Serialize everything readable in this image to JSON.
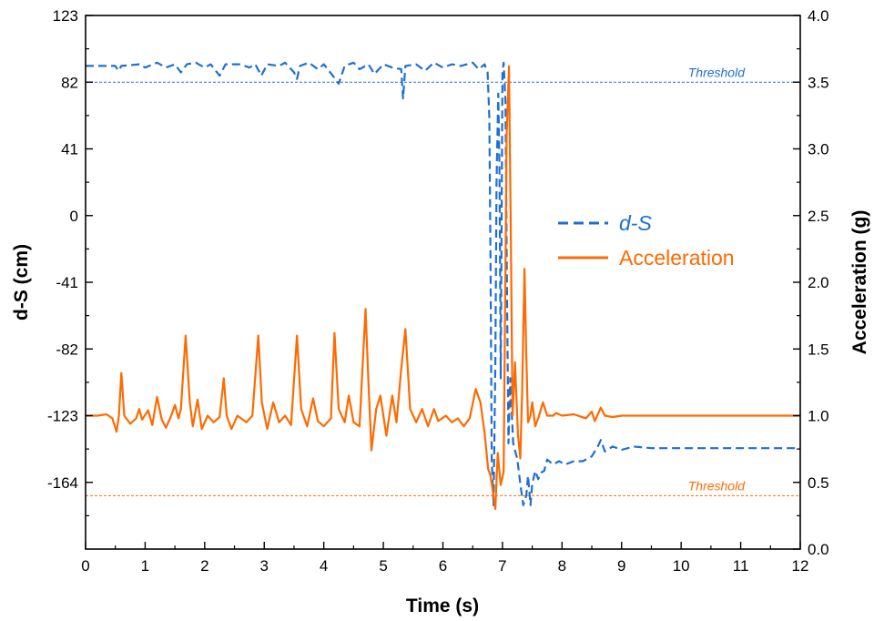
{
  "chart_data": {
    "type": "line",
    "xlabel": "Time (s)",
    "ylabel_left": "d-S (cm)",
    "ylabel_right": "Acceleration (g)",
    "xlim": [
      0,
      12
    ],
    "ylim_left": [
      -205,
      123
    ],
    "ylim_right": [
      0,
      4
    ],
    "x_ticks": [
      "0",
      "1",
      "2",
      "3",
      "4",
      "5",
      "6",
      "7",
      "8",
      "9",
      "10",
      "11",
      "12"
    ],
    "y_left_ticks": [
      "123",
      "82",
      "41",
      "0",
      "-41",
      "-82",
      "-123",
      "-164"
    ],
    "y_right_ticks": [
      "0.0",
      "0.5",
      "1.0",
      "1.5",
      "2.0",
      "2.5",
      "3.0",
      "3.5",
      "4.0"
    ],
    "legend_position": "center-right",
    "grid": false,
    "colors": {
      "ds": "#1f6fd1",
      "acc": "#ff6a00"
    },
    "thresholds": [
      {
        "label": "Threshold",
        "axis": "left",
        "value": 82,
        "color": "#1f6fd1"
      },
      {
        "label": "Threshold",
        "axis": "right",
        "value": 0.4,
        "color": "#ff6a00"
      }
    ],
    "series": [
      {
        "name": "d-S",
        "axis": "left",
        "style": "dashed",
        "points": [
          [
            0.0,
            92
          ],
          [
            0.5,
            92
          ],
          [
            0.55,
            89
          ],
          [
            0.6,
            92
          ],
          [
            0.9,
            93
          ],
          [
            1.0,
            91
          ],
          [
            1.2,
            94
          ],
          [
            1.35,
            91
          ],
          [
            1.5,
            93
          ],
          [
            1.6,
            88
          ],
          [
            1.7,
            93
          ],
          [
            1.85,
            94
          ],
          [
            2.0,
            91
          ],
          [
            2.1,
            93
          ],
          [
            2.25,
            86
          ],
          [
            2.35,
            93
          ],
          [
            2.6,
            93
          ],
          [
            2.75,
            91
          ],
          [
            2.85,
            93
          ],
          [
            2.95,
            86
          ],
          [
            3.05,
            93
          ],
          [
            3.25,
            92
          ],
          [
            3.35,
            94
          ],
          [
            3.5,
            88
          ],
          [
            3.55,
            84
          ],
          [
            3.6,
            92
          ],
          [
            3.75,
            94
          ],
          [
            3.9,
            90
          ],
          [
            4.0,
            93
          ],
          [
            4.15,
            86
          ],
          [
            4.25,
            81
          ],
          [
            4.35,
            92
          ],
          [
            4.5,
            94
          ],
          [
            4.6,
            90
          ],
          [
            4.75,
            93
          ],
          [
            4.85,
            87
          ],
          [
            5.0,
            93
          ],
          [
            5.15,
            91
          ],
          [
            5.3,
            90
          ],
          [
            5.33,
            72
          ],
          [
            5.37,
            92
          ],
          [
            5.55,
            93
          ],
          [
            5.7,
            89
          ],
          [
            5.85,
            94
          ],
          [
            6.0,
            91
          ],
          [
            6.15,
            93
          ],
          [
            6.3,
            92
          ],
          [
            6.5,
            94
          ],
          [
            6.6,
            90
          ],
          [
            6.7,
            93
          ],
          [
            6.75,
            88
          ],
          [
            6.78,
            60
          ],
          [
            6.8,
            -30
          ],
          [
            6.82,
            -150
          ],
          [
            6.85,
            -178
          ],
          [
            6.88,
            -90
          ],
          [
            6.9,
            20
          ],
          [
            6.93,
            75
          ],
          [
            6.95,
            30
          ],
          [
            6.97,
            -100
          ],
          [
            7.0,
            88
          ],
          [
            7.02,
            94
          ],
          [
            7.05,
            70
          ],
          [
            7.08,
            -60
          ],
          [
            7.1,
            -140
          ],
          [
            7.13,
            -100
          ],
          [
            7.18,
            -140
          ],
          [
            7.25,
            -150
          ],
          [
            7.3,
            -165
          ],
          [
            7.35,
            -178
          ],
          [
            7.4,
            -172
          ],
          [
            7.43,
            -160
          ],
          [
            7.47,
            -178
          ],
          [
            7.5,
            -165
          ],
          [
            7.55,
            -157
          ],
          [
            7.6,
            -162
          ],
          [
            7.65,
            -158
          ],
          [
            7.7,
            -157
          ],
          [
            7.75,
            -150
          ],
          [
            7.85,
            -153
          ],
          [
            7.95,
            -151
          ],
          [
            8.05,
            -153
          ],
          [
            8.2,
            -151
          ],
          [
            8.35,
            -151
          ],
          [
            8.5,
            -148
          ],
          [
            8.6,
            -142
          ],
          [
            8.65,
            -138
          ],
          [
            8.72,
            -145
          ],
          [
            8.85,
            -142
          ],
          [
            9.0,
            -144
          ],
          [
            9.2,
            -142
          ],
          [
            9.5,
            -143
          ],
          [
            10.0,
            -143
          ],
          [
            11.0,
            -143
          ],
          [
            12.0,
            -143
          ]
        ]
      },
      {
        "name": "Acceleration",
        "axis": "right",
        "style": "solid",
        "points": [
          [
            0.0,
            1.0
          ],
          [
            0.2,
            1.0
          ],
          [
            0.35,
            1.01
          ],
          [
            0.45,
            0.98
          ],
          [
            0.52,
            0.88
          ],
          [
            0.56,
            1.0
          ],
          [
            0.6,
            1.32
          ],
          [
            0.65,
            1.0
          ],
          [
            0.75,
            0.94
          ],
          [
            0.85,
            0.98
          ],
          [
            0.9,
            1.05
          ],
          [
            0.95,
            0.97
          ],
          [
            1.05,
            1.04
          ],
          [
            1.12,
            0.93
          ],
          [
            1.2,
            1.14
          ],
          [
            1.28,
            0.97
          ],
          [
            1.35,
            0.91
          ],
          [
            1.43,
            0.99
          ],
          [
            1.5,
            1.08
          ],
          [
            1.56,
            0.98
          ],
          [
            1.6,
            1.05
          ],
          [
            1.68,
            1.6
          ],
          [
            1.75,
            1.1
          ],
          [
            1.8,
            0.92
          ],
          [
            1.88,
            1.12
          ],
          [
            1.95,
            0.9
          ],
          [
            2.05,
            1.0
          ],
          [
            2.15,
            0.95
          ],
          [
            2.25,
            0.99
          ],
          [
            2.32,
            1.28
          ],
          [
            2.37,
            1.0
          ],
          [
            2.45,
            0.9
          ],
          [
            2.55,
            1.0
          ],
          [
            2.7,
            0.95
          ],
          [
            2.8,
            1.0
          ],
          [
            2.9,
            1.6
          ],
          [
            2.96,
            1.1
          ],
          [
            3.05,
            0.9
          ],
          [
            3.15,
            1.1
          ],
          [
            3.25,
            0.95
          ],
          [
            3.35,
            1.0
          ],
          [
            3.45,
            0.93
          ],
          [
            3.55,
            1.6
          ],
          [
            3.62,
            1.05
          ],
          [
            3.72,
            0.92
          ],
          [
            3.82,
            1.13
          ],
          [
            3.9,
            0.96
          ],
          [
            4.0,
            0.92
          ],
          [
            4.12,
            0.98
          ],
          [
            4.18,
            1.62
          ],
          [
            4.25,
            1.05
          ],
          [
            4.35,
            0.95
          ],
          [
            4.42,
            1.15
          ],
          [
            4.5,
            0.95
          ],
          [
            4.6,
            0.92
          ],
          [
            4.7,
            1.8
          ],
          [
            4.75,
            1.25
          ],
          [
            4.8,
            0.74
          ],
          [
            4.88,
            1.05
          ],
          [
            4.95,
            1.15
          ],
          [
            5.05,
            0.85
          ],
          [
            5.15,
            1.15
          ],
          [
            5.22,
            0.95
          ],
          [
            5.3,
            1.35
          ],
          [
            5.37,
            1.65
          ],
          [
            5.45,
            1.05
          ],
          [
            5.55,
            0.95
          ],
          [
            5.65,
            1.05
          ],
          [
            5.75,
            0.92
          ],
          [
            5.85,
            1.05
          ],
          [
            5.92,
            0.96
          ],
          [
            6.05,
            1.0
          ],
          [
            6.15,
            0.95
          ],
          [
            6.25,
            0.98
          ],
          [
            6.35,
            0.92
          ],
          [
            6.45,
            0.98
          ],
          [
            6.55,
            1.2
          ],
          [
            6.63,
            1.1
          ],
          [
            6.7,
            0.87
          ],
          [
            6.76,
            0.6
          ],
          [
            6.8,
            0.55
          ],
          [
            6.85,
            0.4
          ],
          [
            6.88,
            0.3
          ],
          [
            6.92,
            0.72
          ],
          [
            6.97,
            0.48
          ],
          [
            7.02,
            0.58
          ],
          [
            7.07,
            3.1
          ],
          [
            7.11,
            3.62
          ],
          [
            7.14,
            2.35
          ],
          [
            7.17,
            1.0
          ],
          [
            7.21,
            1.4
          ],
          [
            7.26,
            0.86
          ],
          [
            7.3,
            0.68
          ],
          [
            7.33,
            1.18
          ],
          [
            7.37,
            2.1
          ],
          [
            7.4,
            1.45
          ],
          [
            7.43,
            0.95
          ],
          [
            7.47,
            1.0
          ],
          [
            7.5,
            1.1
          ],
          [
            7.55,
            0.92
          ],
          [
            7.6,
            0.98
          ],
          [
            7.68,
            1.1
          ],
          [
            7.75,
            1.0
          ],
          [
            7.85,
            1.0
          ],
          [
            7.9,
            1.02
          ],
          [
            8.0,
            1.0
          ],
          [
            8.2,
            1.01
          ],
          [
            8.4,
            0.98
          ],
          [
            8.5,
            1.03
          ],
          [
            8.55,
            0.96
          ],
          [
            8.65,
            1.06
          ],
          [
            8.72,
            1.0
          ],
          [
            8.85,
            0.99
          ],
          [
            9.0,
            1.0
          ],
          [
            10.0,
            1.0
          ],
          [
            11.0,
            1.0
          ],
          [
            12.0,
            1.0
          ]
        ]
      }
    ]
  }
}
